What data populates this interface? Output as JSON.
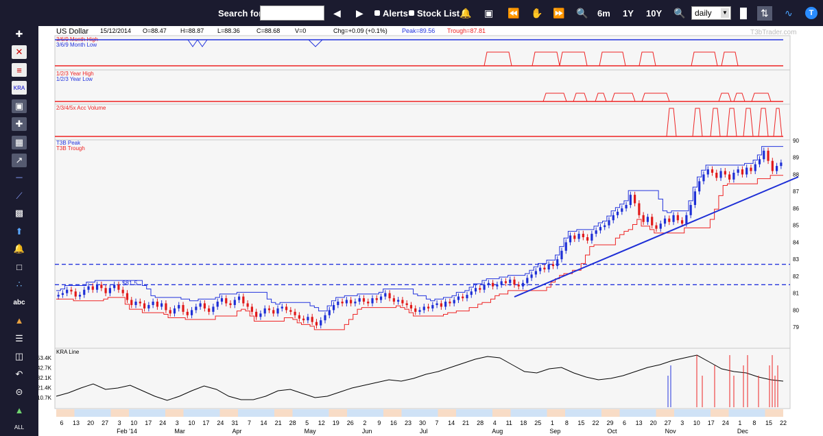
{
  "toolbar": {
    "search_label": "Search for:",
    "search_value": "",
    "alerts_label": "Alerts",
    "stocklist_label": "Stock List",
    "range_6m": "6m",
    "range_1y": "1Y",
    "range_10y": "10Y",
    "period_value": "daily"
  },
  "header": {
    "symbol": "US Dollar",
    "date": "15/12/2014",
    "open": "O=88.47",
    "high": "H=88.87",
    "low": "L=88.36",
    "close": "C=88.68",
    "volume": "V=0",
    "change": "Chg=+0.09 (+0.1%)",
    "peak": "Peak=89.56",
    "trough": "Trough=87.81",
    "watermark": "T3bTrader.com"
  },
  "panels": {
    "month_high": "3/6/9 Month High",
    "month_low": "3/6/9 Month Low",
    "year_high": "1/2/3 Year High",
    "year_low": "1/2/3 Year Low",
    "acc_volume": "2/3/4/5x Acc Volume",
    "t3b_peak": "T3B Peak",
    "t3b_trough": "T3B Trough",
    "kra": "KRA Line",
    "annotation_815": "$81.5"
  },
  "colors": {
    "up": "#1e2fd6",
    "down": "#e11a1a",
    "peak": "#2233dd",
    "trough": "#ee2222",
    "panel_bg": "#f5f5f5",
    "toolbar_bg": "#1b1b2f"
  },
  "chart_data": {
    "type": "candlestick",
    "price_axis_ticks": [
      "90",
      "89",
      "88",
      "87",
      "86",
      "85",
      "84",
      "83",
      "82",
      "81",
      "80",
      "79"
    ],
    "volume_axis_ticks": [
      "53.4K",
      "42.7K",
      "32.1K",
      "21.4K",
      "10.7K"
    ],
    "x_day_ticks": [
      "6",
      "13",
      "20",
      "27",
      "3",
      "10",
      "17",
      "24",
      "3",
      "10",
      "17",
      "24",
      "31",
      "7",
      "14",
      "21",
      "28",
      "5",
      "12",
      "19",
      "26",
      "2",
      "9",
      "16",
      "23",
      "30",
      "7",
      "14",
      "21",
      "28",
      "4",
      "11",
      "18",
      "25",
      "1",
      "8",
      "15",
      "22",
      "29",
      "6",
      "13",
      "20",
      "27",
      "3",
      "10",
      "17",
      "24",
      "1",
      "8",
      "15",
      "22"
    ],
    "x_month_labels": [
      "Feb '14",
      "Mar",
      "Apr",
      "May",
      "Jun",
      "Jul",
      "Aug",
      "Sep",
      "Oct",
      "Nov",
      "Dec"
    ],
    "support_levels": [
      82.7,
      81.5
    ],
    "price_range": [
      78.6,
      90.0
    ],
    "closes_approx": [
      80.9,
      81.0,
      81.2,
      81.1,
      80.8,
      80.9,
      81.2,
      81.4,
      81.2,
      81.5,
      81.3,
      81.0,
      81.3,
      81.5,
      81.2,
      81.0,
      80.6,
      80.3,
      80.5,
      80.4,
      80.1,
      80.3,
      80.5,
      80.2,
      80.4,
      80.0,
      79.8,
      80.1,
      80.3,
      79.9,
      79.7,
      80.0,
      80.2,
      80.4,
      80.1,
      79.9,
      80.2,
      80.5,
      80.7,
      80.4,
      80.3,
      80.6,
      80.8,
      80.4,
      80.2,
      79.9,
      79.6,
      79.8,
      80.1,
      80.0,
      79.8,
      80.1,
      80.2,
      80.0,
      79.9,
      79.7,
      79.5,
      79.4,
      79.6,
      79.3,
      79.1,
      79.4,
      79.7,
      80.0,
      80.3,
      80.5,
      80.4,
      80.6,
      80.4,
      80.5,
      80.7,
      80.5,
      80.4,
      80.7,
      80.6,
      80.8,
      81.0,
      80.7,
      80.5,
      80.6,
      80.4,
      80.3,
      80.1,
      79.9,
      80.0,
      80.2,
      80.1,
      80.3,
      80.4,
      80.2,
      80.5,
      80.4,
      80.6,
      80.8,
      80.7,
      80.9,
      81.1,
      81.3,
      81.2,
      81.5,
      81.6,
      81.4,
      81.5,
      81.7,
      81.6,
      81.8,
      81.5,
      81.4,
      81.6,
      81.9,
      82.1,
      82.3,
      82.5,
      82.4,
      82.7,
      82.6,
      83.0,
      83.5,
      84.0,
      84.4,
      84.2,
      84.5,
      84.3,
      84.1,
      84.5,
      84.7,
      84.9,
      85.0,
      85.3,
      85.6,
      85.8,
      86.0,
      86.2,
      86.8,
      86.3,
      85.6,
      85.2,
      85.5,
      85.0,
      84.8,
      85.1,
      85.4,
      85.2,
      85.6,
      85.3,
      85.1,
      85.6,
      86.2,
      87.0,
      87.6,
      88.0,
      88.3,
      88.1,
      87.8,
      88.2,
      88.0,
      87.7,
      88.1,
      88.3,
      88.0,
      88.4,
      88.2,
      88.6,
      88.9,
      89.4,
      88.8,
      88.2,
      88.5,
      88.7
    ]
  }
}
